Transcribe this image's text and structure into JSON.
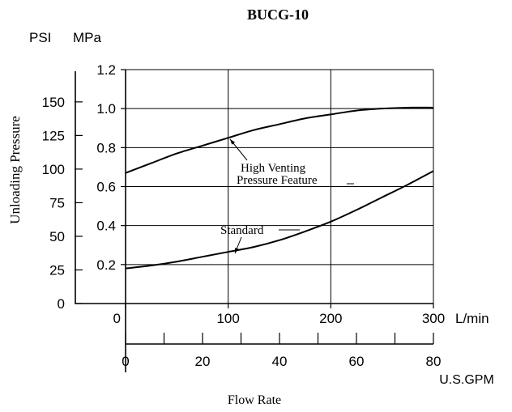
{
  "chart_data": {
    "type": "line",
    "title": "BUCG-10",
    "xlabel": "Flow Rate",
    "ylabel": "Unloading Pressure",
    "left_unit_label": "PSI",
    "right_unit_label": "MPa",
    "x_unit_lpm": "L/min",
    "x_unit_gpm": "U.S.GPM",
    "xlim_lpm": [
      0,
      300
    ],
    "ylim_mpa": [
      0,
      1.2
    ],
    "ylim_psi": [
      0,
      174
    ],
    "grid": true,
    "mpa_ticks": [
      0.2,
      0.4,
      0.6,
      0.8,
      1.0,
      1.2
    ],
    "psi_ticks": [
      0,
      25,
      50,
      75,
      100,
      125,
      150
    ],
    "lpm_ticks": [
      0,
      100,
      200,
      300
    ],
    "gpm_ticks": [
      0,
      20,
      40,
      60,
      80
    ],
    "gpm_minor_step": 10,
    "series": [
      {
        "name": "High Venting Pressure Feature",
        "x": [
          0,
          25,
          50,
          75,
          100,
          125,
          150,
          175,
          200,
          225,
          250,
          275,
          300
        ],
        "y": [
          0.67,
          0.72,
          0.77,
          0.81,
          0.85,
          0.89,
          0.92,
          0.95,
          0.97,
          0.99,
          1.0,
          1.005,
          1.005
        ]
      },
      {
        "name": "Standard",
        "x": [
          0,
          25,
          50,
          75,
          100,
          125,
          150,
          175,
          200,
          225,
          250,
          275,
          300
        ],
        "y": [
          0.18,
          0.195,
          0.215,
          0.24,
          0.265,
          0.29,
          0.325,
          0.37,
          0.42,
          0.48,
          0.545,
          0.61,
          0.68
        ]
      }
    ]
  }
}
